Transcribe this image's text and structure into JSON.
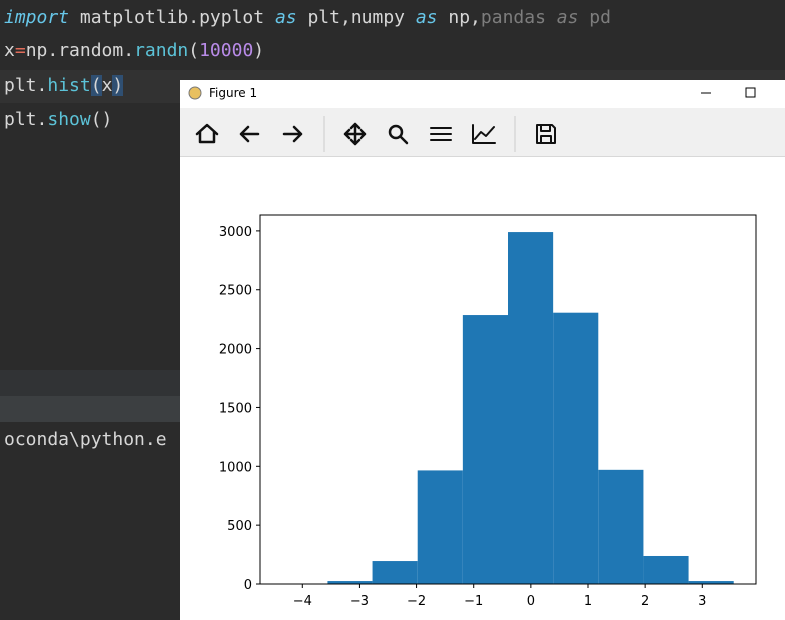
{
  "editor": {
    "lines": [
      [
        "import",
        " matplotlib.pyplot ",
        "as",
        " plt,numpy ",
        "as",
        " np,",
        "pandas ",
        "as",
        " pd"
      ],
      [
        "x",
        "=",
        "np.random.",
        "randn",
        "(",
        "10000",
        ")"
      ],
      [
        "plt.",
        "hist",
        "(",
        "x",
        ")"
      ],
      [
        "plt.",
        "show",
        "()"
      ]
    ],
    "console": "oconda\\python.e"
  },
  "window": {
    "title": "Figure 1"
  },
  "chart_data": {
    "type": "histogram",
    "bins": [
      -4.35,
      -3.56,
      -2.77,
      -1.98,
      -1.19,
      -0.4,
      0.39,
      1.18,
      1.97,
      2.76,
      3.55
    ],
    "values": [
      2,
      25,
      195,
      965,
      2285,
      2990,
      2305,
      970,
      238,
      25
    ],
    "color": "#1f77b4",
    "xlim": [
      -4.74,
      3.94
    ],
    "xticks": [
      {
        "value": -4,
        "label": "−4"
      },
      {
        "value": -3,
        "label": "−3"
      },
      {
        "value": -2,
        "label": "−2"
      },
      {
        "value": -1,
        "label": "−1"
      },
      0,
      1,
      2,
      3
    ],
    "ylim": [
      0,
      3135
    ],
    "yticks": [
      0,
      500,
      1000,
      1500,
      2000,
      2500,
      3000
    ]
  }
}
